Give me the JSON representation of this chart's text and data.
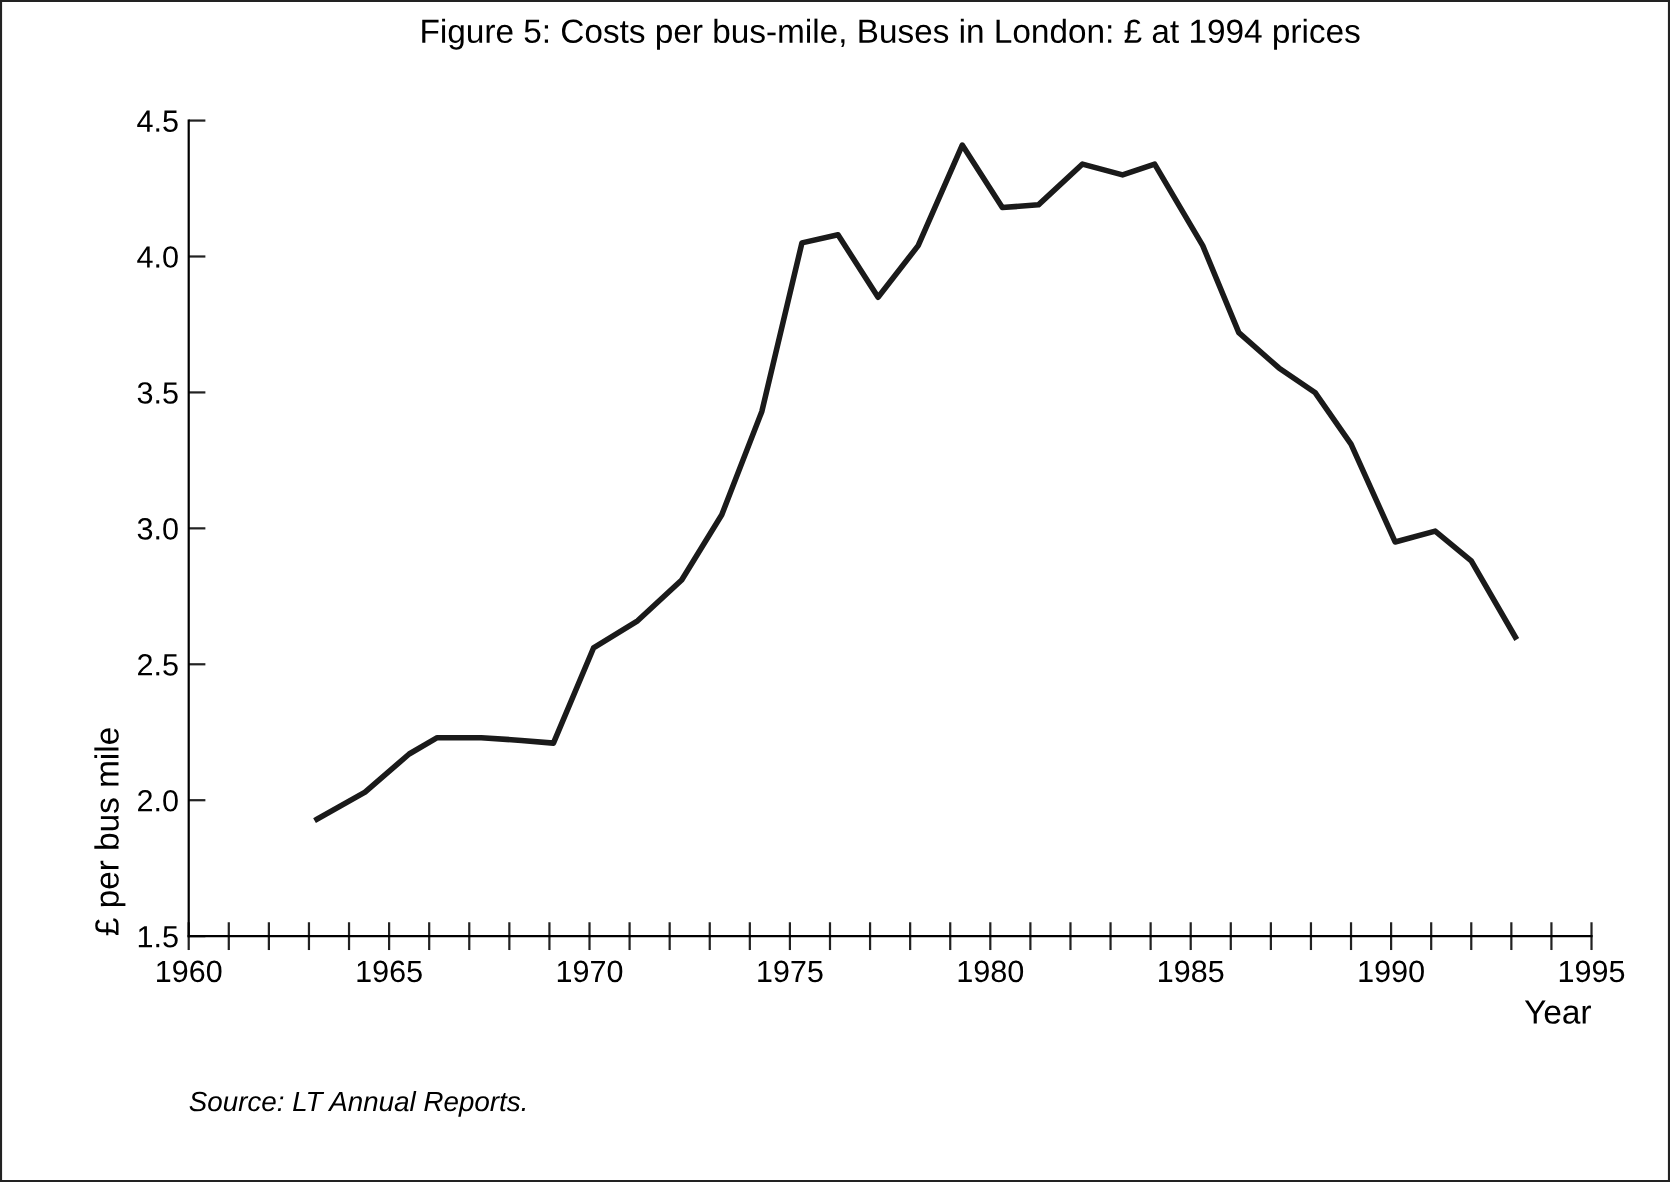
{
  "chart_data": {
    "type": "line",
    "title": "Figure 5: Costs per bus-mile, Buses in London: £ at 1994 prices",
    "xlabel": "Year",
    "ylabel": "£ per bus mile",
    "annotations": [
      "Source: LT Annual Reports."
    ],
    "x": [
      1963.2,
      1964.4,
      1965.5,
      1966.2,
      1967.3,
      1968.3,
      1969.1,
      1970.1,
      1971.2,
      1972.3,
      1973.3,
      1974.3,
      1975.3,
      1976.2,
      1977.2,
      1978.2,
      1979.3,
      1980.3,
      1981.2,
      1982.3,
      1983.3,
      1984.1,
      1985.3,
      1986.2,
      1987.2,
      1988.1,
      1989.0,
      1990.1,
      1991.1,
      1992.0,
      1993.1
    ],
    "series": [
      {
        "color": "#1a1a1a",
        "values": [
          1.93,
          2.03,
          2.17,
          2.23,
          2.23,
          2.22,
          2.21,
          2.56,
          2.66,
          2.81,
          3.05,
          3.43,
          4.05,
          4.08,
          3.85,
          4.04,
          4.41,
          4.18,
          4.19,
          4.34,
          4.3,
          4.34,
          4.04,
          3.72,
          3.59,
          3.5,
          3.31,
          2.95,
          2.99,
          2.88,
          2.6
        ]
      }
    ],
    "xlim": [
      1960,
      1995
    ],
    "ylim": [
      1.5,
      4.5
    ],
    "xticks": [
      1960,
      {
        "value": 1961,
        "label": null
      },
      {
        "value": 1962,
        "label": null
      },
      {
        "value": 1963,
        "label": null
      },
      {
        "value": 1964,
        "label": null
      },
      1965,
      {
        "value": 1966,
        "label": null
      },
      {
        "value": 1967,
        "label": null
      },
      {
        "value": 1968,
        "label": null
      },
      {
        "value": 1969,
        "label": null
      },
      1970,
      {
        "value": 1971,
        "label": null
      },
      {
        "value": 1972,
        "label": null
      },
      {
        "value": 1973,
        "label": null
      },
      {
        "value": 1974,
        "label": null
      },
      1975,
      {
        "value": 1976,
        "label": null
      },
      {
        "value": 1977,
        "label": null
      },
      {
        "value": 1978,
        "label": null
      },
      {
        "value": 1979,
        "label": null
      },
      1980,
      {
        "value": 1981,
        "label": null
      },
      {
        "value": 1982,
        "label": null
      },
      {
        "value": 1983,
        "label": null
      },
      {
        "value": 1984,
        "label": null
      },
      1985,
      {
        "value": 1986,
        "label": null
      },
      {
        "value": 1987,
        "label": null
      },
      {
        "value": 1988,
        "label": null
      },
      {
        "value": 1989,
        "label": null
      },
      1990,
      {
        "value": 1991,
        "label": null
      },
      {
        "value": 1992,
        "label": null
      },
      {
        "value": 1993,
        "label": null
      },
      {
        "value": 1994,
        "label": null
      },
      1995
    ],
    "yticks": [
      1.5,
      {
        "value": 2,
        "label": "2.0"
      },
      2.5,
      {
        "value": 3,
        "label": "3.0"
      },
      3.5,
      {
        "value": 4,
        "label": "4.0"
      },
      4.5
    ],
    "grid": false,
    "legend": false,
    "marker": "none",
    "line_style": "solid"
  }
}
